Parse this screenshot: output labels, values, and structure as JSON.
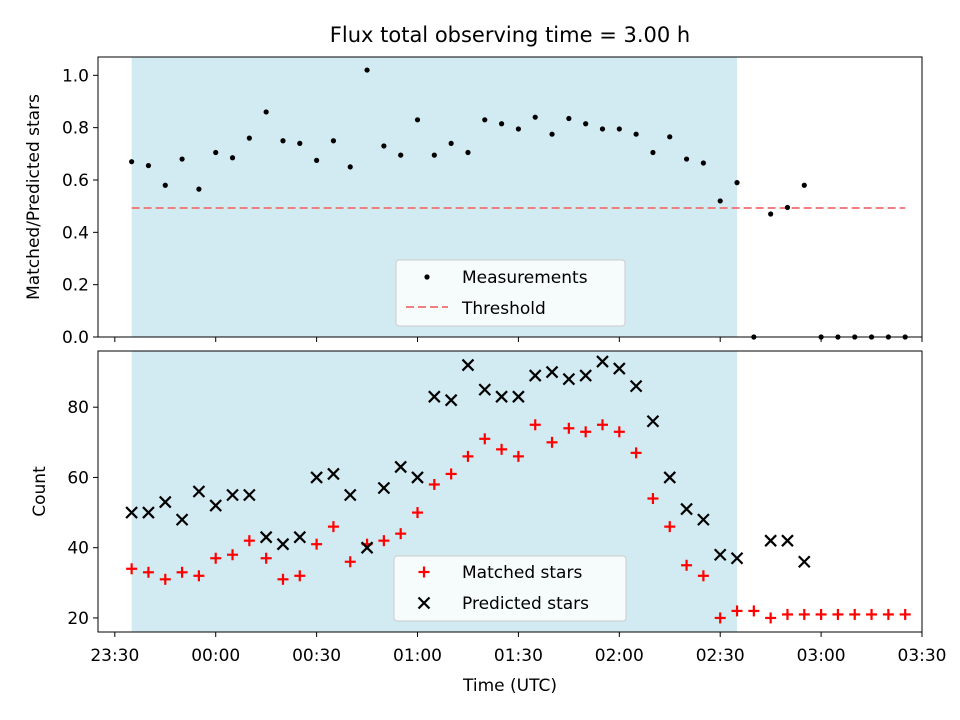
{
  "chart_data": [
    {
      "type": "scatter",
      "title": "Flux total observing time = 3.00 h",
      "xlabel": "",
      "ylabel": "Matched/Predicted stars",
      "ylim": [
        0,
        1.07
      ],
      "yticks": [
        "0.0",
        "0.2",
        "0.4",
        "0.6",
        "0.8",
        "1.0"
      ],
      "xlim_minutes": [
        -35,
        210
      ],
      "shaded_span_minutes": [
        -25,
        155
      ],
      "shade_color": "#add8e6",
      "grid": false,
      "legend": "lower-center",
      "series": [
        {
          "name": "Measurements",
          "marker": "dot",
          "color": "#000000",
          "x": [
            -25,
            -20,
            -15,
            -10,
            -5,
            0,
            5,
            10,
            15,
            20,
            25,
            30,
            35,
            40,
            45,
            50,
            55,
            60,
            65,
            70,
            75,
            80,
            85,
            90,
            95,
            100,
            105,
            110,
            115,
            120,
            125,
            130,
            135,
            140,
            145,
            150,
            155,
            160,
            165,
            170,
            175,
            180,
            185,
            190,
            195,
            200,
            205
          ],
          "y": [
            0.67,
            0.655,
            0.58,
            0.68,
            0.565,
            0.705,
            0.685,
            0.76,
            0.86,
            0.75,
            0.74,
            0.675,
            0.75,
            0.65,
            1.02,
            0.73,
            0.695,
            0.83,
            0.695,
            0.74,
            0.705,
            0.83,
            0.815,
            0.795,
            0.84,
            0.775,
            0.835,
            0.815,
            0.795,
            0.795,
            0.775,
            0.705,
            0.765,
            0.68,
            0.665,
            0.52,
            0.59,
            0.0,
            0.47,
            0.495,
            0.58,
            0.0,
            0.0,
            0.0,
            0.0,
            0.0,
            0.0
          ]
        }
      ],
      "threshold": {
        "name": "Threshold",
        "value": 0.493,
        "x_range_minutes": [
          -25,
          205
        ],
        "color": "#f08080",
        "style": "dashed"
      }
    },
    {
      "type": "scatter",
      "title": "",
      "xlabel": "Time (UTC)",
      "ylabel": "Count",
      "ylim": [
        16,
        96
      ],
      "yticks": [
        "20",
        "40",
        "60",
        "80"
      ],
      "xticks": [
        "23:30",
        "00:00",
        "00:30",
        "01:00",
        "01:30",
        "02:00",
        "02:30",
        "03:00",
        "03:30"
      ],
      "xlim_minutes": [
        -35,
        210
      ],
      "shaded_span_minutes": [
        -25,
        155
      ],
      "shade_color": "#add8e6",
      "grid": false,
      "legend": "lower-center",
      "series": [
        {
          "name": "Matched stars",
          "marker": "plus",
          "color": "#ff0000",
          "x": [
            -25,
            -20,
            -15,
            -10,
            -5,
            0,
            5,
            10,
            15,
            20,
            25,
            30,
            35,
            40,
            45,
            50,
            55,
            60,
            65,
            70,
            75,
            80,
            85,
            90,
            95,
            100,
            105,
            110,
            115,
            120,
            125,
            130,
            135,
            140,
            145,
            150,
            155,
            160,
            165,
            170,
            175,
            180,
            185,
            190,
            195,
            200,
            205
          ],
          "y": [
            34,
            33,
            31,
            33,
            32,
            37,
            38,
            42,
            37,
            31,
            32,
            41,
            46,
            36,
            41,
            42,
            44,
            50,
            58,
            61,
            66,
            71,
            68,
            66,
            75,
            70,
            74,
            73,
            75,
            73,
            67,
            54,
            46,
            35,
            32,
            20,
            22,
            22,
            20,
            21,
            21,
            21,
            21,
            21,
            21,
            21,
            21
          ]
        },
        {
          "name": "Predicted stars",
          "marker": "x",
          "color": "#000000",
          "x": [
            -25,
            -20,
            -15,
            -10,
            -5,
            0,
            5,
            10,
            15,
            20,
            25,
            30,
            35,
            40,
            45,
            50,
            55,
            60,
            65,
            70,
            75,
            80,
            85,
            90,
            95,
            100,
            105,
            110,
            115,
            120,
            125,
            130,
            135,
            140,
            145,
            150,
            155,
            165,
            170,
            175
          ],
          "y": [
            50,
            50,
            53,
            48,
            56,
            52,
            55,
            55,
            43,
            41,
            43,
            60,
            61,
            55,
            40,
            57,
            63,
            60,
            83,
            82,
            92,
            85,
            83,
            83,
            89,
            90,
            88,
            89,
            93,
            91,
            86,
            76,
            60,
            51,
            48,
            38,
            37,
            42,
            42,
            36
          ]
        }
      ]
    }
  ]
}
